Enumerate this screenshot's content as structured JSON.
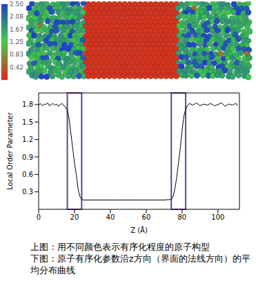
{
  "structure_image": {
    "colorbar": {
      "range": [
        0,
        2.5
      ],
      "ticks": [
        0.42,
        0.83,
        1.25,
        1.67,
        2.08,
        {
          "value": 2.5,
          "label": "2.50"
        }
      ],
      "colors": [
        "#e8201c",
        "#3fd13f",
        "#1f3fd0"
      ]
    }
  },
  "chart_data": {
    "type": "line",
    "x_label": "Z (Å)",
    "y_label": "Local Order Parameter",
    "color": "#000000",
    "grid": false,
    "xlim": [
      0,
      112
    ],
    "xticks": [
      0,
      20,
      40,
      60,
      80,
      100
    ],
    "ylim": [
      0,
      2.0
    ],
    "yticks": [
      0.3,
      0.6,
      0.9,
      1.2,
      1.5,
      1.8
    ],
    "x": [
      0,
      1,
      2,
      3,
      4,
      5,
      6,
      7,
      8,
      9,
      10,
      11,
      12,
      13,
      14,
      15,
      16,
      17,
      18,
      19,
      20,
      21,
      22,
      23,
      24,
      25,
      30,
      35,
      40,
      45,
      50,
      55,
      60,
      65,
      70,
      74,
      75,
      76,
      77,
      78,
      79,
      80,
      81,
      82,
      83,
      84,
      86,
      88,
      90,
      92,
      94,
      96,
      98,
      100,
      102,
      104,
      106,
      108,
      110,
      111
    ],
    "values": [
      1.79,
      1.82,
      1.78,
      1.81,
      1.8,
      1.83,
      1.78,
      1.8,
      1.82,
      1.79,
      1.81,
      1.77,
      1.8,
      1.82,
      1.78,
      1.76,
      1.7,
      1.55,
      1.3,
      1.05,
      0.8,
      0.6,
      0.35,
      0.22,
      0.17,
      0.16,
      0.16,
      0.16,
      0.16,
      0.16,
      0.16,
      0.16,
      0.16,
      0.16,
      0.16,
      0.17,
      0.22,
      0.35,
      0.55,
      0.8,
      1.05,
      1.35,
      1.6,
      1.72,
      1.78,
      1.82,
      1.79,
      1.83,
      1.78,
      1.81,
      1.79,
      1.82,
      1.78,
      1.8,
      1.83,
      1.77,
      1.81,
      1.79,
      1.82,
      1.78
    ],
    "highlights": [
      {
        "x": [
          16,
          24
        ]
      },
      {
        "x": [
          74,
          82
        ]
      }
    ]
  },
  "caption": [
    "上图：用不同颜色表示有序化程度的原子构型",
    "下图：原子有序化参数沿z方向（界面的法线方向）的平均分布曲线"
  ]
}
